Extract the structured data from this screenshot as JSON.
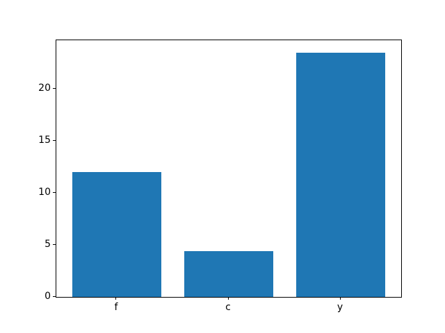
{
  "chart_data": {
    "type": "bar",
    "categories": [
      "f",
      "c",
      "y"
    ],
    "values": [
      12.0,
      4.4,
      23.5
    ],
    "title": "",
    "xlabel": "",
    "ylabel": "",
    "yticks": [
      0,
      5,
      10,
      15,
      20
    ],
    "ylim": [
      0,
      24.7
    ],
    "xlim": [
      -0.54,
      2.54
    ],
    "bar_width": 0.8,
    "bar_color": "#1f77b4",
    "axis_color": "#000000",
    "text_color": "#000000",
    "background": "#ffffff",
    "grid": false,
    "legend": false
  }
}
